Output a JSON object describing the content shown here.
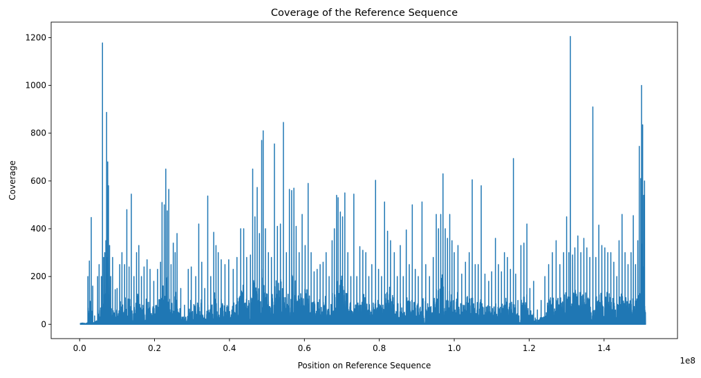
{
  "chart_data": {
    "type": "line",
    "title": "Coverage of the Reference Sequence",
    "xlabel": "Position on Reference Sequence",
    "ylabel": "Coverage",
    "x_offset_label": "1e8",
    "xlim": [
      -0.076,
      1.596
    ],
    "ylim": [
      -60,
      1265
    ],
    "x_ticks": [
      0.0,
      0.2,
      0.4,
      0.6,
      0.8,
      1.0,
      1.2,
      1.4
    ],
    "x_tick_labels": [
      "0.0",
      "0.2",
      "0.4",
      "0.6",
      "0.8",
      "1.0",
      "1.2",
      "1.4"
    ],
    "y_ticks": [
      0,
      200,
      400,
      600,
      800,
      1000,
      1200
    ],
    "y_tick_labels": [
      "0",
      "200",
      "400",
      "600",
      "800",
      "1000",
      "1200"
    ],
    "grid": false,
    "legend": "none",
    "series": [
      {
        "color": "#1f77b4",
        "peaks": [
          [
            0.002,
            5
          ],
          [
            0.012,
            4
          ],
          [
            0.02,
            6
          ],
          [
            0.022,
            200
          ],
          [
            0.026,
            265
          ],
          [
            0.031,
            447
          ],
          [
            0.035,
            160
          ],
          [
            0.04,
            35
          ],
          [
            0.048,
            200
          ],
          [
            0.052,
            250
          ],
          [
            0.058,
            200
          ],
          [
            0.061,
            1178
          ],
          [
            0.064,
            280
          ],
          [
            0.067,
            300
          ],
          [
            0.07,
            350
          ],
          [
            0.072,
            887
          ],
          [
            0.075,
            680
          ],
          [
            0.077,
            580
          ],
          [
            0.08,
            330
          ],
          [
            0.083,
            200
          ],
          [
            0.088,
            280
          ],
          [
            0.095,
            145
          ],
          [
            0.1,
            150
          ],
          [
            0.107,
            250
          ],
          [
            0.113,
            300
          ],
          [
            0.12,
            250
          ],
          [
            0.126,
            480
          ],
          [
            0.132,
            240
          ],
          [
            0.138,
            545
          ],
          [
            0.145,
            200
          ],
          [
            0.152,
            300
          ],
          [
            0.158,
            330
          ],
          [
            0.165,
            200
          ],
          [
            0.172,
            240
          ],
          [
            0.18,
            270
          ],
          [
            0.188,
            230
          ],
          [
            0.198,
            180
          ],
          [
            0.208,
            230
          ],
          [
            0.216,
            260
          ],
          [
            0.22,
            510
          ],
          [
            0.226,
            500
          ],
          [
            0.23,
            650
          ],
          [
            0.234,
            475
          ],
          [
            0.238,
            565
          ],
          [
            0.244,
            250
          ],
          [
            0.25,
            340
          ],
          [
            0.255,
            300
          ],
          [
            0.26,
            380
          ],
          [
            0.27,
            150
          ],
          [
            0.28,
            80
          ],
          [
            0.29,
            230
          ],
          [
            0.298,
            240
          ],
          [
            0.31,
            200
          ],
          [
            0.318,
            420
          ],
          [
            0.326,
            260
          ],
          [
            0.334,
            150
          ],
          [
            0.342,
            537
          ],
          [
            0.35,
            200
          ],
          [
            0.358,
            385
          ],
          [
            0.364,
            330
          ],
          [
            0.37,
            300
          ],
          [
            0.378,
            270
          ],
          [
            0.388,
            250
          ],
          [
            0.398,
            270
          ],
          [
            0.41,
            230
          ],
          [
            0.42,
            280
          ],
          [
            0.43,
            400
          ],
          [
            0.438,
            400
          ],
          [
            0.446,
            280
          ],
          [
            0.456,
            290
          ],
          [
            0.462,
            650
          ],
          [
            0.468,
            450
          ],
          [
            0.474,
            573
          ],
          [
            0.48,
            380
          ],
          [
            0.486,
            770
          ],
          [
            0.49,
            810
          ],
          [
            0.496,
            400
          ],
          [
            0.504,
            300
          ],
          [
            0.512,
            280
          ],
          [
            0.52,
            755
          ],
          [
            0.528,
            410
          ],
          [
            0.536,
            420
          ],
          [
            0.544,
            845
          ],
          [
            0.552,
            300
          ],
          [
            0.56,
            565
          ],
          [
            0.566,
            560
          ],
          [
            0.572,
            570
          ],
          [
            0.578,
            410
          ],
          [
            0.586,
            300
          ],
          [
            0.594,
            460
          ],
          [
            0.602,
            330
          ],
          [
            0.61,
            590
          ],
          [
            0.618,
            300
          ],
          [
            0.626,
            220
          ],
          [
            0.634,
            230
          ],
          [
            0.642,
            250
          ],
          [
            0.65,
            260
          ],
          [
            0.658,
            300
          ],
          [
            0.666,
            200
          ],
          [
            0.674,
            350
          ],
          [
            0.68,
            400
          ],
          [
            0.686,
            540
          ],
          [
            0.69,
            530
          ],
          [
            0.696,
            470
          ],
          [
            0.702,
            450
          ],
          [
            0.708,
            550
          ],
          [
            0.716,
            300
          ],
          [
            0.724,
            200
          ],
          [
            0.732,
            545
          ],
          [
            0.74,
            200
          ],
          [
            0.748,
            325
          ],
          [
            0.756,
            310
          ],
          [
            0.764,
            300
          ],
          [
            0.772,
            200
          ],
          [
            0.78,
            250
          ],
          [
            0.79,
            603
          ],
          [
            0.798,
            230
          ],
          [
            0.806,
            200
          ],
          [
            0.814,
            512
          ],
          [
            0.822,
            390
          ],
          [
            0.83,
            350
          ],
          [
            0.84,
            300
          ],
          [
            0.848,
            200
          ],
          [
            0.856,
            330
          ],
          [
            0.864,
            200
          ],
          [
            0.872,
            395
          ],
          [
            0.88,
            250
          ],
          [
            0.888,
            500
          ],
          [
            0.896,
            230
          ],
          [
            0.904,
            200
          ],
          [
            0.914,
            512
          ],
          [
            0.924,
            250
          ],
          [
            0.934,
            200
          ],
          [
            0.944,
            280
          ],
          [
            0.952,
            460
          ],
          [
            0.958,
            400
          ],
          [
            0.964,
            460
          ],
          [
            0.97,
            630
          ],
          [
            0.976,
            400
          ],
          [
            0.982,
            360
          ],
          [
            0.988,
            460
          ],
          [
            0.994,
            350
          ],
          [
            1.0,
            300
          ],
          [
            1.01,
            330
          ],
          [
            1.02,
            210
          ],
          [
            1.03,
            260
          ],
          [
            1.04,
            300
          ],
          [
            1.048,
            605
          ],
          [
            1.056,
            250
          ],
          [
            1.064,
            250
          ],
          [
            1.072,
            580
          ],
          [
            1.082,
            210
          ],
          [
            1.092,
            180
          ],
          [
            1.1,
            220
          ],
          [
            1.11,
            360
          ],
          [
            1.118,
            250
          ],
          [
            1.126,
            220
          ],
          [
            1.134,
            300
          ],
          [
            1.142,
            280
          ],
          [
            1.15,
            230
          ],
          [
            1.158,
            694
          ],
          [
            1.164,
            210
          ],
          [
            1.17,
            100
          ],
          [
            1.178,
            330
          ],
          [
            1.186,
            340
          ],
          [
            1.194,
            420
          ],
          [
            1.202,
            150
          ],
          [
            1.212,
            180
          ],
          [
            1.222,
            60
          ],
          [
            1.232,
            100
          ],
          [
            1.242,
            200
          ],
          [
            1.252,
            250
          ],
          [
            1.262,
            300
          ],
          [
            1.272,
            350
          ],
          [
            1.282,
            250
          ],
          [
            1.292,
            300
          ],
          [
            1.3,
            450
          ],
          [
            1.306,
            300
          ],
          [
            1.31,
            1205
          ],
          [
            1.316,
            290
          ],
          [
            1.322,
            320
          ],
          [
            1.33,
            370
          ],
          [
            1.338,
            300
          ],
          [
            1.346,
            360
          ],
          [
            1.354,
            320
          ],
          [
            1.362,
            280
          ],
          [
            1.37,
            910
          ],
          [
            1.378,
            280
          ],
          [
            1.386,
            415
          ],
          [
            1.394,
            330
          ],
          [
            1.402,
            320
          ],
          [
            1.41,
            300
          ],
          [
            1.418,
            300
          ],
          [
            1.426,
            260
          ],
          [
            1.434,
            200
          ],
          [
            1.44,
            350
          ],
          [
            1.448,
            460
          ],
          [
            1.456,
            300
          ],
          [
            1.464,
            250
          ],
          [
            1.472,
            300
          ],
          [
            1.478,
            455
          ],
          [
            1.484,
            250
          ],
          [
            1.49,
            350
          ],
          [
            1.494,
            745
          ],
          [
            1.498,
            610
          ],
          [
            1.5,
            1000
          ],
          [
            1.503,
            835
          ],
          [
            1.506,
            540
          ],
          [
            1.508,
            600
          ],
          [
            1.511,
            200
          ]
        ]
      }
    ]
  }
}
